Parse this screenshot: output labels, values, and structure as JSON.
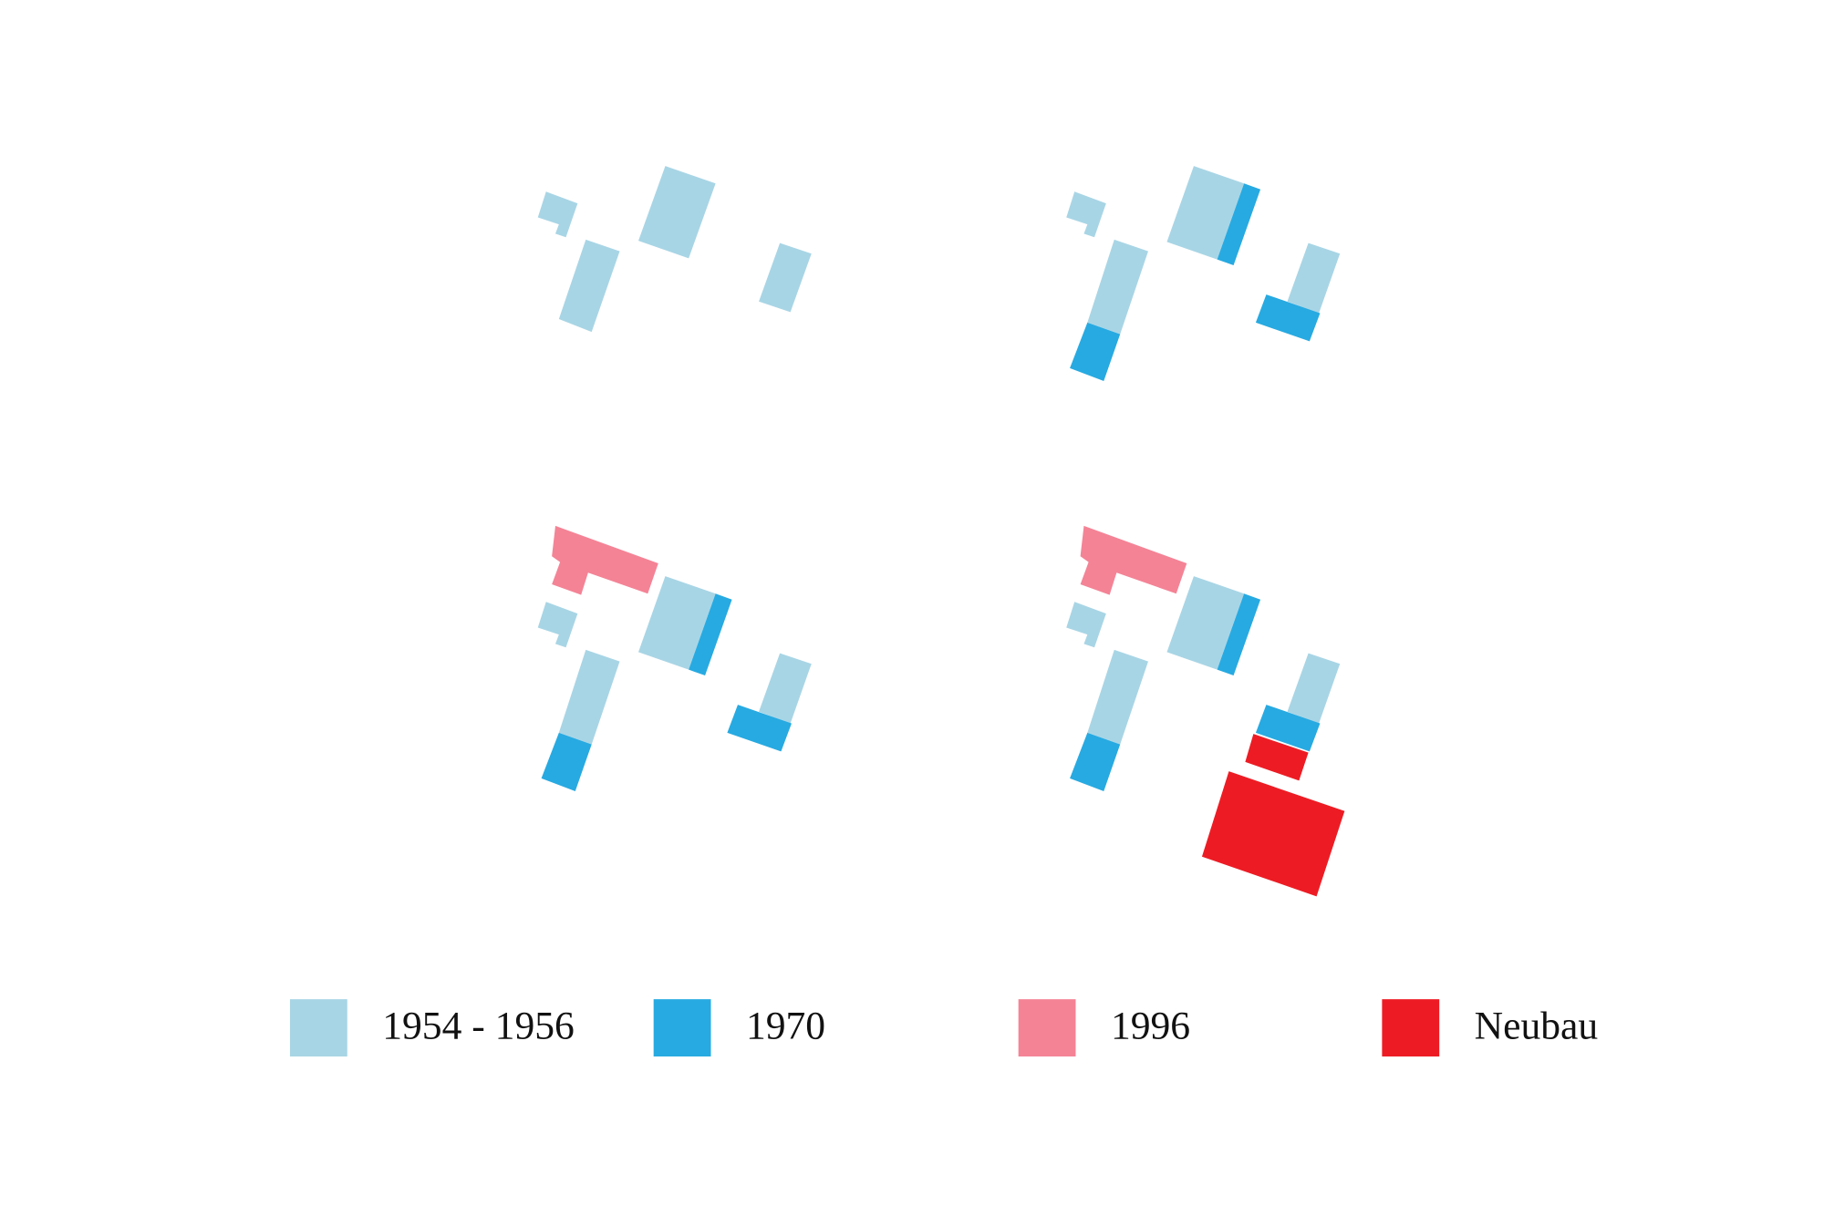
{
  "legend": [
    "1954 - 1956",
    "1970",
    "1996",
    "Neubau"
  ]
}
